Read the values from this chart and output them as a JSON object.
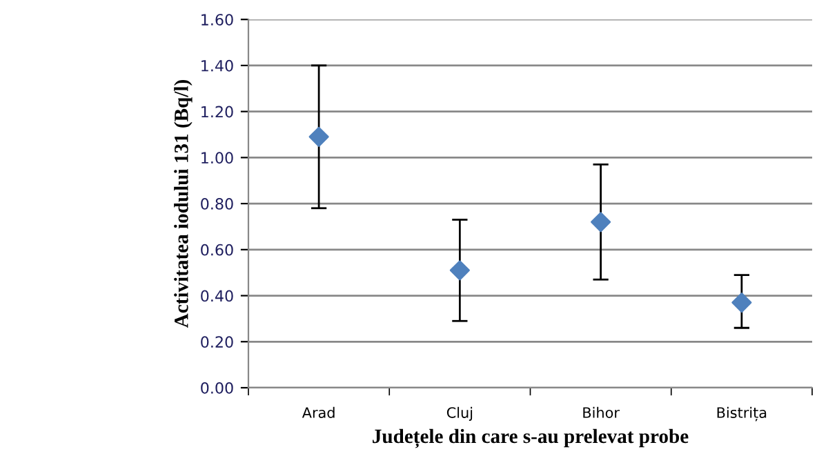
{
  "chart_data": {
    "type": "scatter",
    "xlabel": "Județele din care s-au prelevat probe",
    "ylabel": "Activitatea iodului 131 (Bq/l)",
    "categories": [
      "Arad",
      "Cluj",
      "Bihor",
      "Bistrița"
    ],
    "series": [
      {
        "color": "#4f81bd",
        "values": [
          1.09,
          0.51,
          0.72,
          0.37
        ],
        "errors": [
          [
            0.78,
            1.4
          ],
          [
            0.29,
            0.73
          ],
          [
            0.47,
            0.97
          ],
          [
            0.26,
            0.49
          ]
        ]
      }
    ],
    "ylim": [
      0,
      1.6
    ],
    "yticks": [
      {
        "value": 0,
        "label": "0.00"
      },
      {
        "value": 0.2,
        "label": "0.20"
      },
      {
        "value": 0.4,
        "label": "0.40"
      },
      {
        "value": 0.6,
        "label": "0.60"
      },
      {
        "value": 0.8,
        "label": "0.80"
      },
      {
        "value": 1.0,
        "label": "1.00"
      },
      {
        "value": 1.2,
        "label": "1.20"
      },
      {
        "value": 1.4,
        "label": "1.40"
      },
      {
        "value": 1.6,
        "label": "1.60"
      }
    ],
    "grid": "y",
    "marker": "diamond",
    "legend": false
  }
}
